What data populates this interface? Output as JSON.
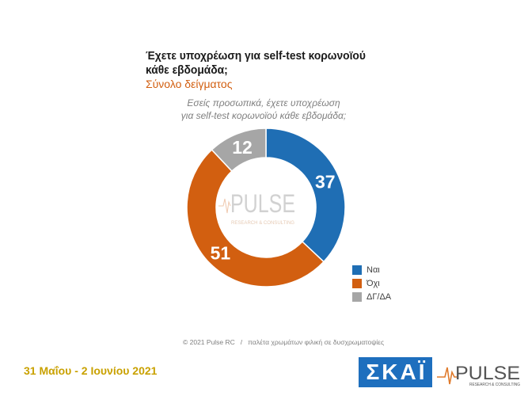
{
  "chart_data": {
    "type": "pie",
    "donut": true,
    "title": "Έχετε υποχρέωση για self-test κορωνοϊού\nκάθε εβδομάδα;",
    "subtitle": "Σύνολο δείγματος",
    "question": "Εσείς προσωπικά, έχετε υποχρέωση\nγια self-test κορωνοϊού κάθε εβδομάδα;",
    "categories": [
      "Ναι",
      "Όχι",
      "ΔΓ/ΔΑ"
    ],
    "values": [
      37,
      51,
      12
    ],
    "colors": [
      "#1f6eb4",
      "#d25f10",
      "#a6a6a6"
    ],
    "legend_position": "bottom-right"
  },
  "watermark": {
    "brand": "PULSE",
    "tagline": "RESEARCH & CONSULTING"
  },
  "footer": {
    "copyright": "© 2021 Pulse RC",
    "separator": "/",
    "palette_note": "παλέτα χρωμάτων φιλική σε δυσχρωματοψίες",
    "fieldwork_dates": "31 Μαΐου - 2 Ιουνίου 2021"
  },
  "logos": {
    "broadcaster": "ΣΚΑΪ",
    "pollster": "PULSE",
    "pollster_tagline": "RESEARCH & CONSULTING"
  },
  "colors": {
    "title": "#1a1a1a",
    "subtitle": "#d25f10",
    "question": "#7f7f7f",
    "fieldwork_dates": "#c9a100",
    "broadcaster_logo": "#1e6fbe",
    "pollster_accent": "#e07b2c"
  }
}
